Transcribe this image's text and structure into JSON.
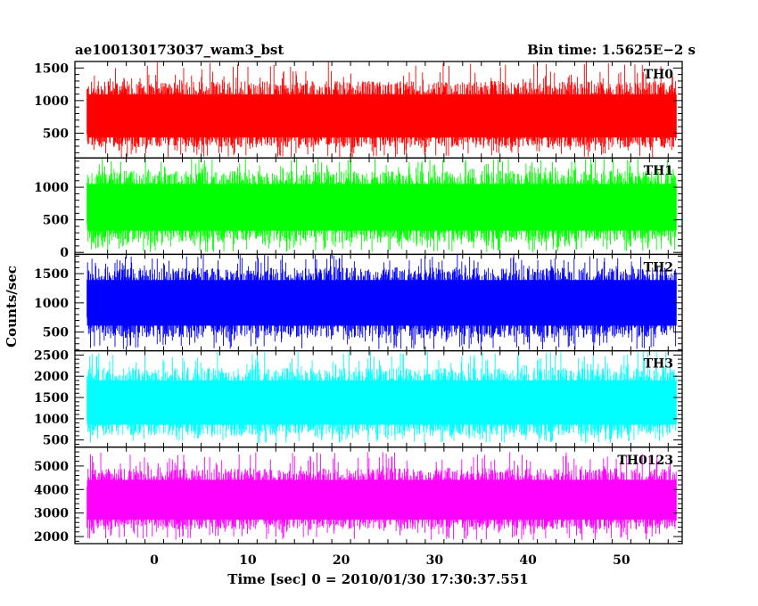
{
  "header": {
    "title": "ae100130173037_wam3_bst",
    "bin_time": "Bin time: 1.5625E−2 s"
  },
  "chart_data": {
    "type": "line",
    "title": "ae100130173037_wam3_bst",
    "xlabel": "Time [sec] 0 = 2010/01/30 17:30:37.551",
    "ylabel": "Counts/sec",
    "xlim": [
      -8.5,
      56.5
    ],
    "xticks": [
      0,
      10,
      20,
      30,
      40,
      50
    ],
    "data_x_range": [
      -7.2,
      55.9
    ],
    "panels": [
      {
        "name": "TH0",
        "color": "#ff0000",
        "ylim": [
          120,
          1600
        ],
        "yticks": [
          500,
          1000,
          1500
        ],
        "center": 720,
        "band_low": 280,
        "band_high": 1300,
        "min": 130,
        "max": 1600
      },
      {
        "name": "TH1",
        "color": "#00ff00",
        "ylim": [
          -30,
          1450
        ],
        "yticks": [
          0,
          500,
          1000
        ],
        "center": 680,
        "band_low": 150,
        "band_high": 1250,
        "min": 0,
        "max": 1450
      },
      {
        "name": "TH2",
        "color": "#0000ff",
        "ylim": [
          180,
          1830
        ],
        "yticks": [
          500,
          1000,
          1500
        ],
        "center": 1000,
        "band_low": 400,
        "band_high": 1600,
        "min": 200,
        "max": 1830
      },
      {
        "name": "TH3",
        "color": "#00ffff",
        "ylim": [
          330,
          2600
        ],
        "yticks": [
          500,
          1000,
          1500,
          2000,
          2500
        ],
        "center": 1350,
        "band_low": 600,
        "band_high": 2200,
        "min": 420,
        "max": 2600
      },
      {
        "name": "TH0123",
        "color": "#ff00ff",
        "ylim": [
          1700,
          5800
        ],
        "yticks": [
          2000,
          3000,
          4000,
          5000
        ],
        "center": 3500,
        "band_low": 2300,
        "band_high": 4900,
        "min": 1850,
        "max": 5600
      }
    ]
  }
}
